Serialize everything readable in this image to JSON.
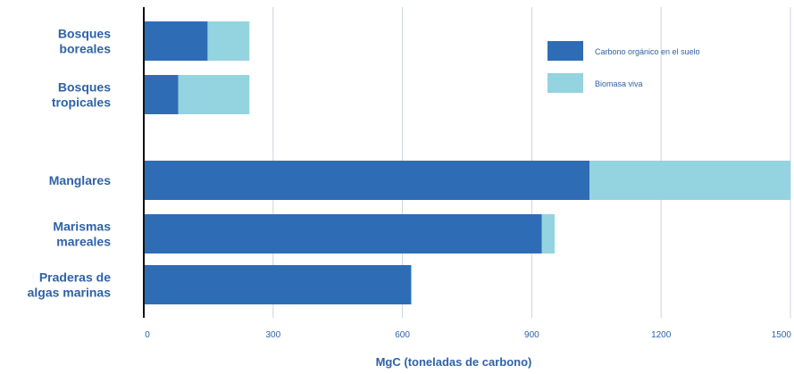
{
  "chart_data": {
    "type": "bar",
    "orientation": "horizontal",
    "stacked": true,
    "title": "",
    "xlabel": "MgC (toneladas de carbono)",
    "ylabel": "",
    "xlim": [
      0,
      1500
    ],
    "xticks": [
      "0",
      "300",
      "600",
      "900",
      "1200",
      "1500"
    ],
    "grid": true,
    "legend_position": "top-right",
    "categories": [
      {
        "lines": [
          "Bosques",
          "boreales"
        ]
      },
      {
        "lines": [
          "Bosques",
          "tropicales"
        ]
      },
      {
        "lines": [
          "Manglares"
        ]
      },
      {
        "lines": [
          "Marismas",
          "mareales"
        ]
      },
      {
        "lines": [
          "Praderas de",
          "algas marinas"
        ]
      }
    ],
    "series": [
      {
        "name": "Carbono orgánico en el suelo",
        "color": "#2e6db5",
        "values": [
          148,
          80,
          1034,
          923,
          620
        ]
      },
      {
        "name": "Biomasa viva",
        "color": "#94d3e0",
        "values": [
          97,
          165,
          466,
          30,
          2
        ]
      }
    ]
  }
}
